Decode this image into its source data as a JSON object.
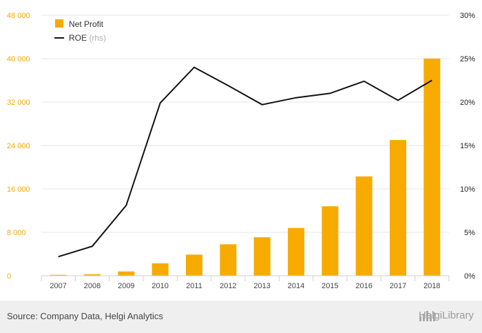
{
  "chart_data": {
    "type": "bar",
    "categories": [
      "2007",
      "2008",
      "2009",
      "2010",
      "2011",
      "2012",
      "2013",
      "2014",
      "2015",
      "2016",
      "2017",
      "2018"
    ],
    "series": [
      {
        "name": "Net Profit",
        "type": "bar",
        "axis": "left",
        "color": "#f7ab00",
        "values": [
          170,
          280,
          800,
          2300,
          3900,
          5800,
          7100,
          8800,
          12800,
          18300,
          25000,
          40000
        ]
      },
      {
        "name": "ROE",
        "type": "line",
        "axis": "right",
        "color": "#111111",
        "values": [
          2.2,
          3.4,
          8.1,
          19.9,
          24.0,
          21.9,
          19.7,
          20.5,
          21.0,
          22.4,
          20.2,
          22.5
        ]
      }
    ],
    "legend": [
      {
        "label": "Net Profit",
        "suffix": ""
      },
      {
        "label": "ROE",
        "suffix": "(rhs)"
      }
    ],
    "yleft": {
      "ylim": [
        0,
        48000
      ],
      "ticks": [
        0,
        8000,
        16000,
        24000,
        32000,
        40000,
        48000
      ],
      "tick_labels": [
        "0",
        "8 000",
        "16 000",
        "24 000",
        "32 000",
        "40 000",
        "48 000"
      ]
    },
    "yright": {
      "ylim": [
        0,
        30
      ],
      "ticks": [
        0,
        5,
        10,
        15,
        20,
        25,
        30
      ],
      "tick_labels": [
        "0%",
        "5%",
        "10%",
        "15%",
        "20%",
        "25%",
        "30%"
      ]
    },
    "grid": true,
    "legend_position": "top-left"
  },
  "footer": {
    "source": "Source: Company Data, Helgi Analytics",
    "brand": "HelgiLibrary",
    "brand_icon": "helgi-logo-icon"
  }
}
